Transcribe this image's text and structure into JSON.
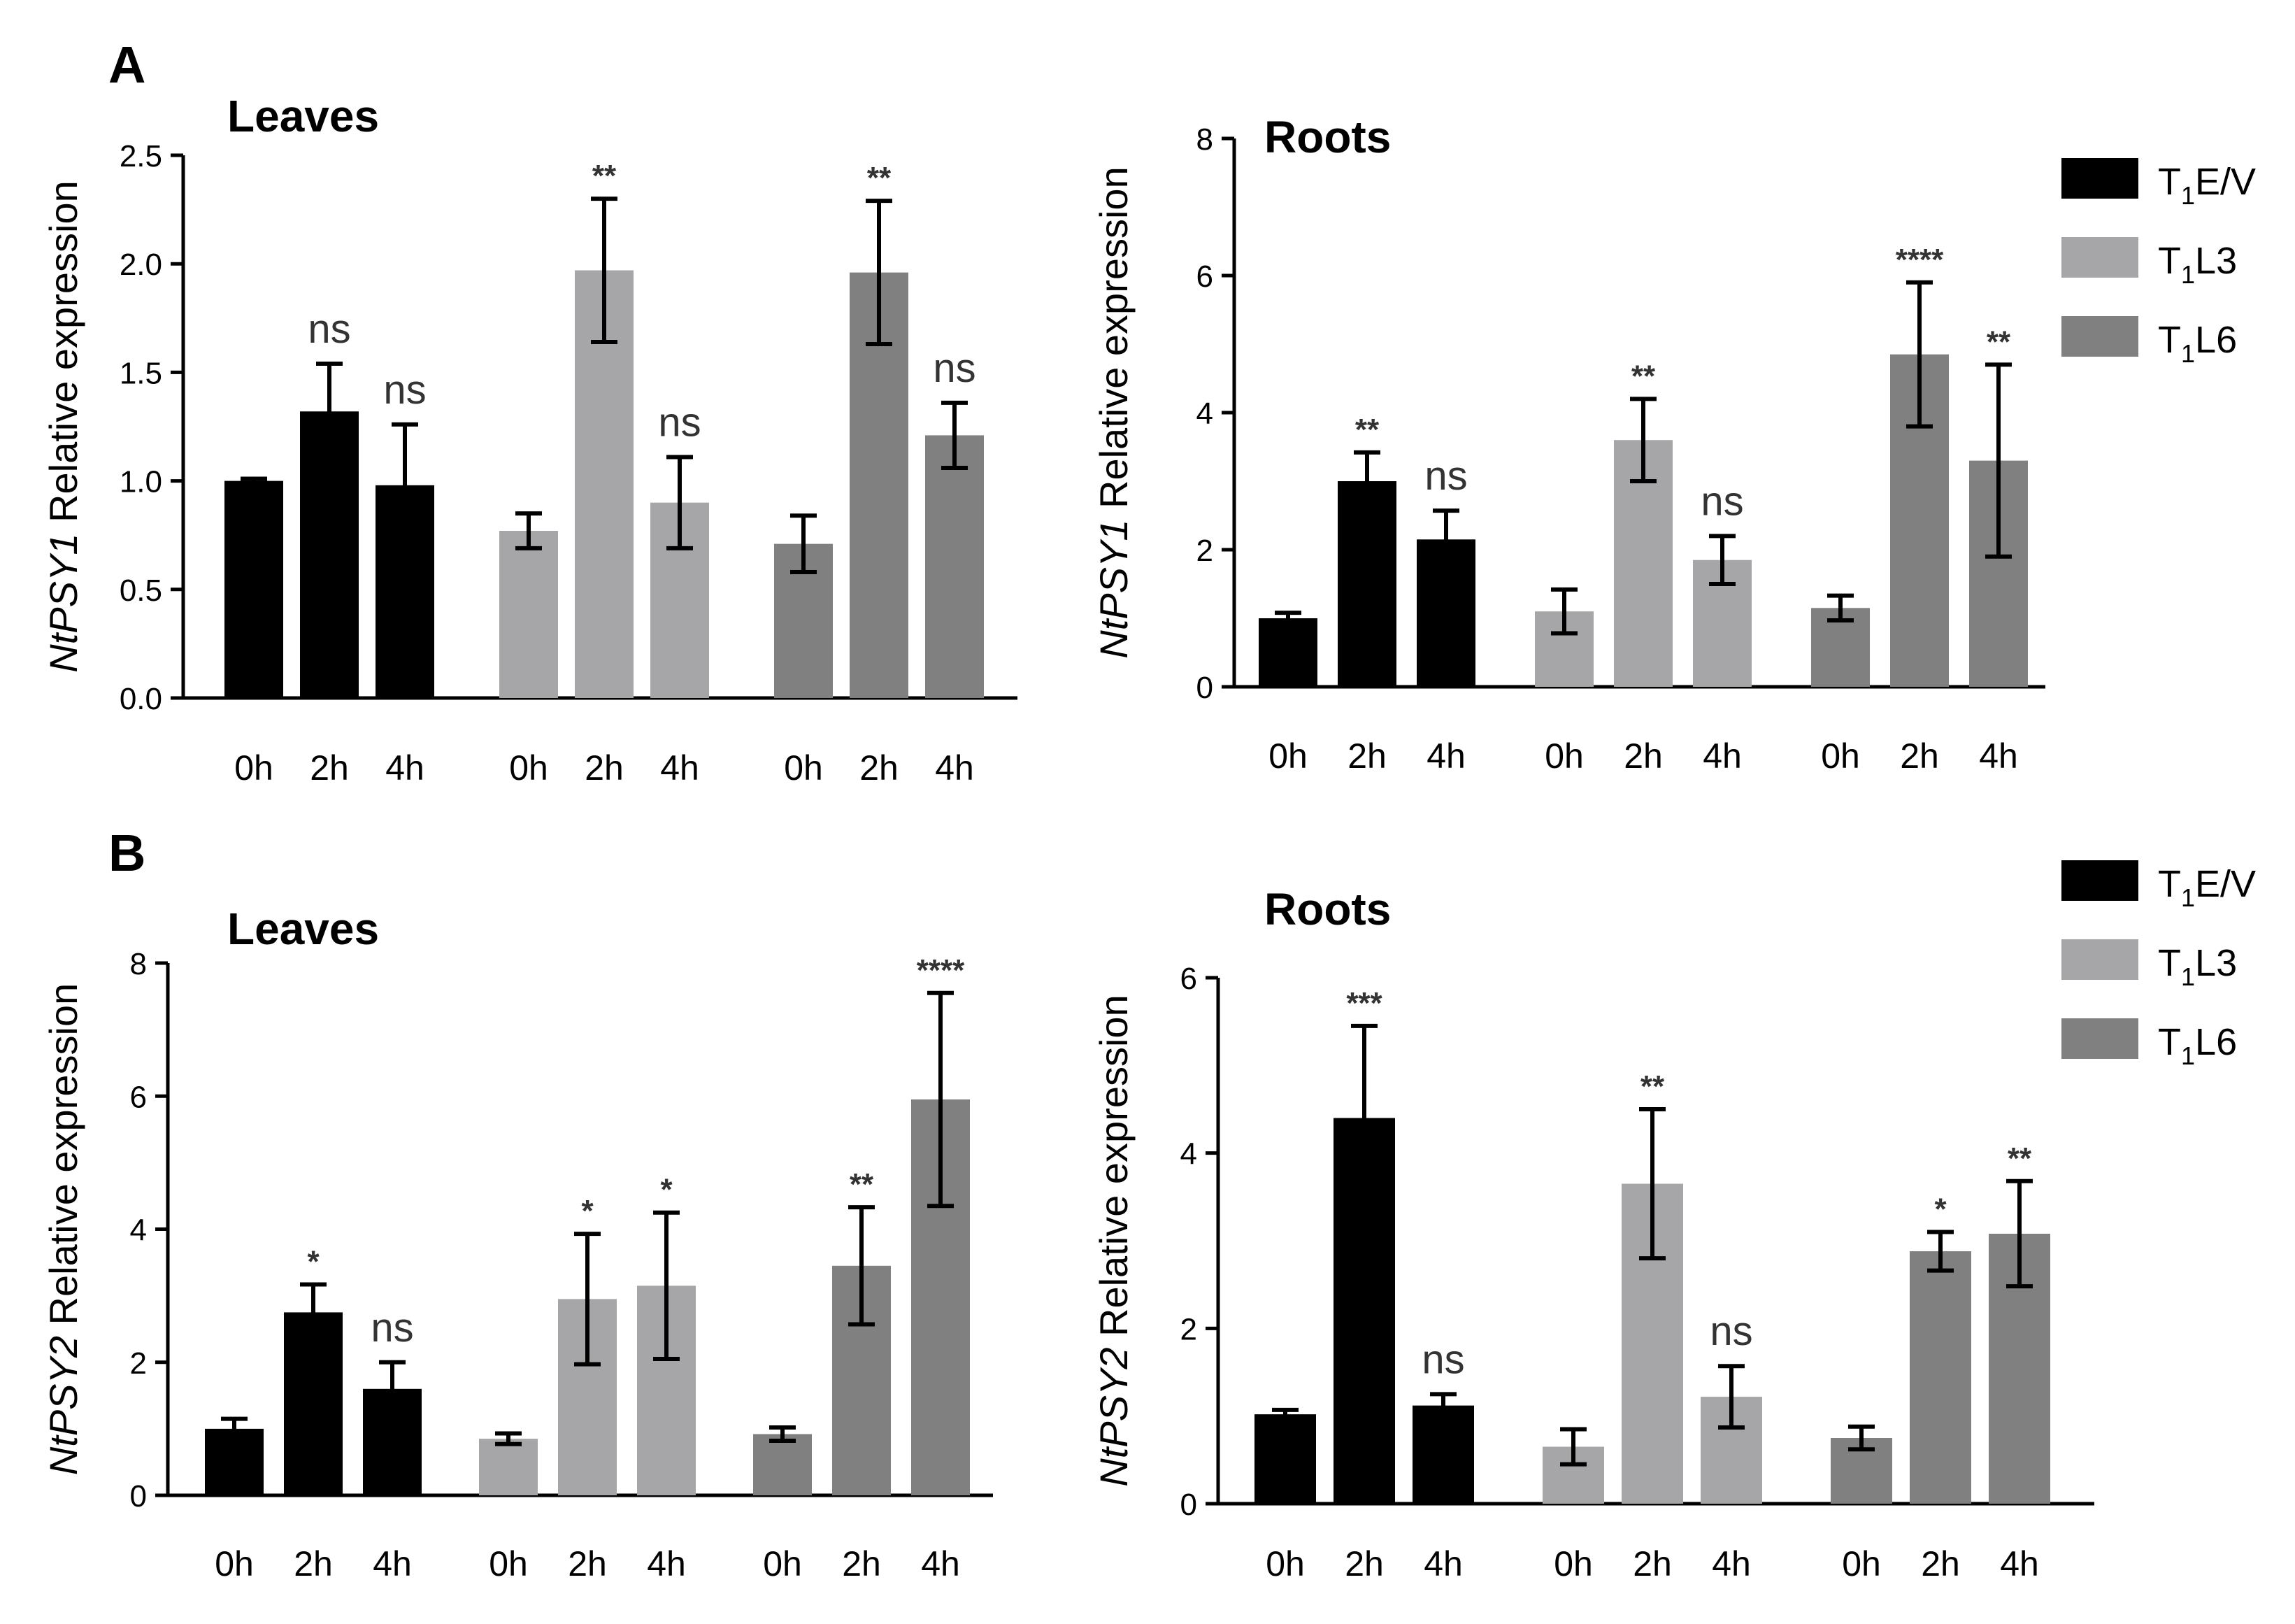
{
  "figure": {
    "panel_labels": [
      "A",
      "B"
    ],
    "legend": [
      {
        "prefix": "T",
        "sub": "1",
        "suffix": "E/V",
        "color": "#000000"
      },
      {
        "prefix": "T",
        "sub": "1",
        "suffix": "L3",
        "color": "#a6a6a8"
      },
      {
        "prefix": "T",
        "sub": "1",
        "suffix": "L6",
        "color": "#808080"
      }
    ]
  },
  "chart_data": [
    {
      "type": "bar",
      "panel": "A",
      "title": "Leaves",
      "ylabel_italic": "NtPSY1",
      "ylabel_rest": " Relative expression",
      "ylim": [
        0,
        2.5
      ],
      "yticks": [
        "0.0",
        "0.5",
        "1.0",
        "1.5",
        "2.0",
        "2.5"
      ],
      "categories": [
        "0h",
        "2h",
        "4h"
      ],
      "series": [
        {
          "name": "T1E/V",
          "color": "#000000",
          "values": [
            1.0,
            1.32,
            0.98
          ],
          "errors": [
            0.01,
            0.22,
            0.28
          ],
          "labels": [
            "",
            "ns",
            "ns"
          ]
        },
        {
          "name": "T1L3",
          "color": "#a6a6a8",
          "values": [
            0.77,
            1.97,
            0.9
          ],
          "errors": [
            0.08,
            0.33,
            0.21
          ],
          "labels": [
            "",
            "**",
            "ns"
          ]
        },
        {
          "name": "T1L6",
          "color": "#808080",
          "values": [
            0.71,
            1.96,
            1.21
          ],
          "errors": [
            0.13,
            0.33,
            0.15
          ],
          "labels": [
            "",
            "**",
            "ns"
          ]
        }
      ]
    },
    {
      "type": "bar",
      "panel": "A",
      "title": "Roots",
      "ylabel_italic": "NtPSY1",
      "ylabel_rest": " Relative expression",
      "ylim": [
        0,
        8
      ],
      "yticks": [
        "0",
        "2",
        "4",
        "6",
        "8"
      ],
      "categories": [
        "0h",
        "2h",
        "4h"
      ],
      "series": [
        {
          "name": "T1E/V",
          "color": "#000000",
          "values": [
            1.0,
            3.0,
            2.15
          ],
          "errors": [
            0.08,
            0.42,
            0.42
          ],
          "labels": [
            "",
            "**",
            "ns"
          ]
        },
        {
          "name": "T1L3",
          "color": "#a6a6a8",
          "values": [
            1.1,
            3.6,
            1.85
          ],
          "errors": [
            0.32,
            0.6,
            0.35
          ],
          "labels": [
            "",
            "**",
            "ns"
          ]
        },
        {
          "name": "T1L6",
          "color": "#808080",
          "values": [
            1.15,
            4.85,
            3.3
          ],
          "errors": [
            0.18,
            1.05,
            1.4
          ],
          "labels": [
            "",
            "****",
            "**"
          ]
        }
      ]
    },
    {
      "type": "bar",
      "panel": "B",
      "title": "Leaves",
      "ylabel_italic": "NtPSY2",
      "ylabel_rest": " Relative expression",
      "ylim": [
        0,
        8
      ],
      "yticks": [
        "0",
        "2",
        "4",
        "6",
        "8"
      ],
      "categories": [
        "0h",
        "2h",
        "4h"
      ],
      "series": [
        {
          "name": "T1E/V",
          "color": "#000000",
          "values": [
            1.0,
            2.75,
            1.6
          ],
          "errors": [
            0.15,
            0.42,
            0.4
          ],
          "labels": [
            "",
            "*",
            "ns"
          ]
        },
        {
          "name": "T1L3",
          "color": "#a6a6a8",
          "values": [
            0.85,
            2.95,
            3.15
          ],
          "errors": [
            0.08,
            0.98,
            1.1
          ],
          "labels": [
            "",
            "*",
            "*"
          ]
        },
        {
          "name": "T1L6",
          "color": "#808080",
          "values": [
            0.92,
            3.45,
            5.95
          ],
          "errors": [
            0.1,
            0.88,
            1.6
          ],
          "labels": [
            "",
            "**",
            "****"
          ]
        }
      ]
    },
    {
      "type": "bar",
      "panel": "B",
      "title": "Roots",
      "ylabel_italic": "NtPSY2",
      "ylabel_rest": " Relative expression",
      "ylim": [
        0,
        6
      ],
      "yticks": [
        "0",
        "2",
        "4",
        "6"
      ],
      "categories": [
        "0h",
        "2h",
        "4h"
      ],
      "series": [
        {
          "name": "T1E/V",
          "color": "#000000",
          "values": [
            1.02,
            4.4,
            1.12
          ],
          "errors": [
            0.05,
            1.05,
            0.13
          ],
          "labels": [
            "",
            "***",
            "ns"
          ]
        },
        {
          "name": "T1L3",
          "color": "#a6a6a8",
          "values": [
            0.65,
            3.65,
            1.22
          ],
          "errors": [
            0.2,
            0.85,
            0.35
          ],
          "labels": [
            "",
            "**",
            "ns"
          ]
        },
        {
          "name": "T1L6",
          "color": "#808080",
          "values": [
            0.75,
            2.88,
            3.08
          ],
          "errors": [
            0.13,
            0.22,
            0.6
          ],
          "labels": [
            "",
            "*",
            "**"
          ]
        }
      ]
    }
  ]
}
